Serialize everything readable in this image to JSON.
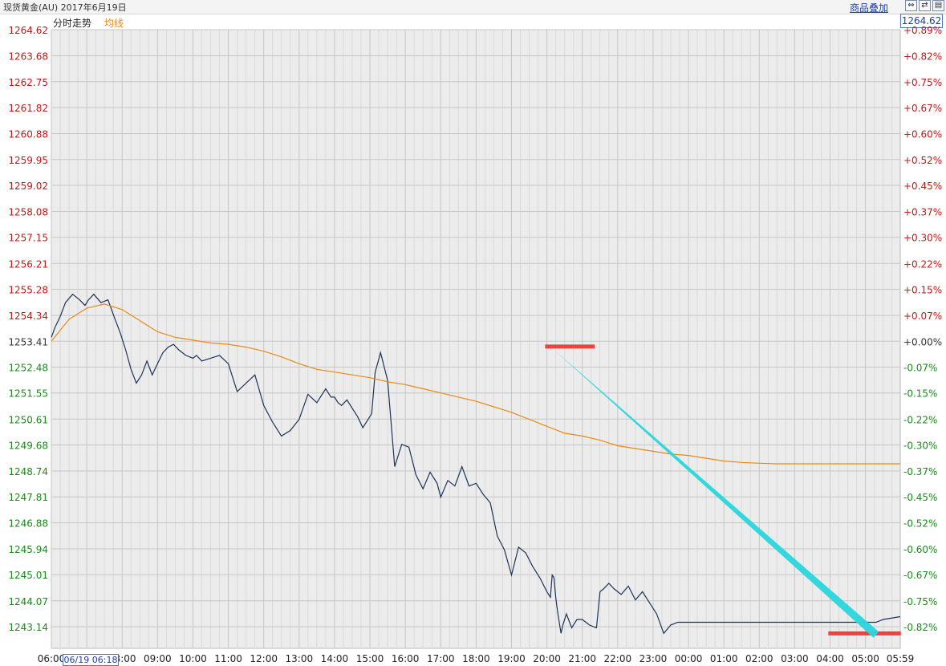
{
  "header": {
    "title": "现货黄金(AU) 2017年6月19日",
    "overlay_button": "商品叠加",
    "price_box": "1264.62",
    "legend_price": "分时走势",
    "legend_avg": "均线",
    "time_cursor": "06/19 06:18"
  },
  "chart_data": {
    "type": "line",
    "title": "",
    "xlabel": "",
    "ylabel": "",
    "ylim": [
      1242.5,
      1264.62
    ],
    "base_price": 1253.41,
    "y_ticks_left": [
      "1264.62",
      "1263.68",
      "1262.75",
      "1261.82",
      "1260.88",
      "1259.95",
      "1259.02",
      "1258.08",
      "1257.15",
      "1256.21",
      "1255.28",
      "1254.34",
      "1253.41",
      "1252.48",
      "1251.55",
      "1250.61",
      "1249.68",
      "1248.74",
      "1247.81",
      "1246.88",
      "1245.94",
      "1245.01",
      "1244.07",
      "1243.14"
    ],
    "y_ticks_right": [
      "+0.89%",
      "+0.82%",
      "+0.75%",
      "+0.67%",
      "+0.60%",
      "+0.52%",
      "+0.45%",
      "+0.37%",
      "+0.30%",
      "+0.22%",
      "+0.15%",
      "+0.07%",
      "+0.00%",
      "-0.07%",
      "-0.15%",
      "-0.22%",
      "-0.30%",
      "-0.37%",
      "-0.45%",
      "-0.52%",
      "-0.60%",
      "-0.67%",
      "-0.75%",
      "-0.82%"
    ],
    "x_ticks": [
      "06:00",
      "07:00",
      "08:00",
      "09:00",
      "10:00",
      "11:00",
      "12:00",
      "13:00",
      "14:00",
      "15:00",
      "16:00",
      "17:00",
      "18:00",
      "19:00",
      "20:00",
      "21:00",
      "22:00",
      "23:00",
      "00:00",
      "01:00",
      "02:00",
      "03:00",
      "04:00",
      "05:00",
      "05:59"
    ],
    "x_range_hours": [
      0,
      23.983
    ],
    "grid": true,
    "series": [
      {
        "role": "price",
        "color": "#1b3358",
        "x": [
          0,
          0.1,
          0.25,
          0.4,
          0.6,
          0.8,
          0.95,
          1.05,
          1.2,
          1.4,
          1.6,
          1.8,
          1.95,
          2.1,
          2.25,
          2.4,
          2.55,
          2.7,
          2.85,
          3.0,
          3.15,
          3.3,
          3.45,
          3.6,
          3.8,
          4.0,
          4.1,
          4.25,
          4.5,
          4.75,
          5.0,
          5.25,
          5.5,
          5.75,
          6.0,
          6.25,
          6.5,
          6.75,
          7.0,
          7.25,
          7.5,
          7.75,
          7.9,
          8.0,
          8.1,
          8.2,
          8.35,
          8.5,
          8.65,
          8.8,
          8.95,
          9.05,
          9.15,
          9.3,
          9.5,
          9.7,
          9.9,
          10.1,
          10.3,
          10.5,
          10.7,
          10.9,
          11.0,
          11.2,
          11.4,
          11.6,
          11.8,
          12.0,
          12.2,
          12.4,
          12.6,
          12.8,
          13.0,
          13.2,
          13.4,
          13.6,
          13.8,
          14.0,
          14.1,
          14.15,
          14.2,
          14.25,
          14.3,
          14.4,
          14.45,
          14.55,
          14.7,
          14.85,
          15.0,
          15.2,
          15.4,
          15.5,
          15.6,
          15.75,
          15.9,
          16.1,
          16.3,
          16.5,
          16.7,
          16.9,
          17.1,
          17.3,
          17.5,
          17.7,
          17.9,
          18.1,
          18.3,
          18.5,
          18.6,
          18.75,
          18.9,
          19.1,
          19.25,
          19.4,
          19.6,
          19.8,
          20.0,
          20.2,
          20.4,
          20.6,
          20.8,
          21.0,
          21.2,
          21.4,
          21.6,
          21.8,
          22.0,
          22.1,
          22.2,
          22.3,
          22.4,
          22.5,
          22.6,
          22.7,
          22.8,
          22.85,
          22.9,
          23.0,
          23.1,
          23.3,
          23.5,
          23.983
        ],
        "y": [
          1253.55,
          1253.9,
          1254.3,
          1254.8,
          1255.1,
          1254.9,
          1254.7,
          1254.9,
          1255.1,
          1254.8,
          1254.9,
          1254.2,
          1253.7,
          1253.1,
          1252.4,
          1251.9,
          1252.2,
          1252.7,
          1252.2,
          1252.6,
          1253.0,
          1253.2,
          1253.3,
          1253.1,
          1252.9,
          1252.8,
          1252.9,
          1252.7,
          1252.8,
          1252.9,
          1252.6,
          1251.6,
          1251.9,
          1252.2,
          1251.1,
          1250.5,
          1250.0,
          1250.2,
          1250.6,
          1251.5,
          1251.2,
          1251.7,
          1251.4,
          1251.4,
          1251.2,
          1251.1,
          1251.3,
          1251.0,
          1250.7,
          1250.3,
          1250.6,
          1250.8,
          1252.3,
          1253.0,
          1252.0,
          1248.9,
          1249.7,
          1249.6,
          1248.6,
          1248.1,
          1248.7,
          1248.3,
          1247.8,
          1248.4,
          1248.2,
          1248.9,
          1248.2,
          1248.3,
          1247.9,
          1247.6,
          1246.4,
          1245.9,
          1245.0,
          1246.0,
          1245.8,
          1245.3,
          1244.9,
          1244.4,
          1244.2,
          1245.0,
          1244.9,
          1244.2,
          1243.7,
          1242.9,
          1243.2,
          1243.6,
          1243.1,
          1243.4,
          1243.4,
          1243.2,
          1243.1,
          1244.4,
          1244.5,
          1244.7,
          1244.5,
          1244.3,
          1244.6,
          1244.1,
          1244.4,
          1244.0,
          1243.6,
          1242.9,
          1243.2,
          1243.3,
          1243.3,
          1243.3,
          1243.3,
          1243.3,
          1243.3,
          1243.3,
          1243.3,
          1243.3,
          1243.3,
          1243.3,
          1243.3,
          1243.3,
          1243.3,
          1243.3,
          1243.3,
          1243.3,
          1243.3,
          1243.3,
          1243.3,
          1243.3,
          1243.3,
          1243.3,
          1243.3,
          1243.3,
          1243.3,
          1243.3,
          1243.3,
          1243.3,
          1243.3,
          1243.3,
          1243.3,
          1243.3,
          1243.3,
          1243.3,
          1243.3,
          1243.3,
          1243.4,
          1243.5
        ]
      },
      {
        "role": "average",
        "color": "#e88a12",
        "x": [
          0,
          0.5,
          1.0,
          1.5,
          2.0,
          2.5,
          3.0,
          3.5,
          4.0,
          4.5,
          5.0,
          5.5,
          6.0,
          6.5,
          7.0,
          7.5,
          8.0,
          8.5,
          9.0,
          9.5,
          10.0,
          10.5,
          11.0,
          11.5,
          12.0,
          12.5,
          13.0,
          13.5,
          14.0,
          14.5,
          15.0,
          15.5,
          16.0,
          16.5,
          17.0,
          17.5,
          18.0,
          18.5,
          19.0,
          19.5,
          20.0,
          20.5,
          21.0,
          21.5,
          22.0,
          22.5,
          23.0,
          23.983
        ],
        "y": [
          1253.41,
          1254.2,
          1254.6,
          1254.75,
          1254.55,
          1254.15,
          1253.75,
          1253.55,
          1253.45,
          1253.35,
          1253.3,
          1253.2,
          1253.05,
          1252.85,
          1252.6,
          1252.4,
          1252.3,
          1252.2,
          1252.1,
          1251.95,
          1251.85,
          1251.7,
          1251.55,
          1251.4,
          1251.25,
          1251.05,
          1250.85,
          1250.6,
          1250.35,
          1250.1,
          1250.0,
          1249.85,
          1249.65,
          1249.55,
          1249.45,
          1249.35,
          1249.3,
          1249.2,
          1249.1,
          1249.05,
          1249.02,
          1249.0,
          1249.0,
          1249.0,
          1249.0,
          1249.0,
          1249.0,
          1249.0
        ]
      }
    ],
    "annotations": [
      {
        "type": "hline",
        "color": "#f04040",
        "x": [
          13.95,
          15.35
        ],
        "y": 1253.22
      },
      {
        "type": "hline",
        "color": "#f04040",
        "x": [
          21.95,
          24.0
        ],
        "y": 1242.9
      },
      {
        "type": "trend",
        "color": "#29d6dc",
        "from": [
          14.2,
          1253.1
        ],
        "to": [
          23.3,
          1242.85
        ]
      }
    ]
  }
}
